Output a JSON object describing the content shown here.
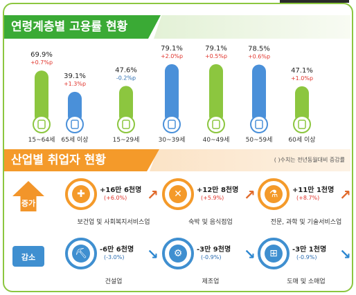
{
  "section1": {
    "title": "연령계층별 고용률 현황"
  },
  "chart_data": {
    "type": "bar",
    "categories": [
      "15~64세",
      "65세 이상",
      "15~29세",
      "30~39세",
      "40~49세",
      "50~59세",
      "60세 이상"
    ],
    "values": [
      69.9,
      39.1,
      47.6,
      79.1,
      79.1,
      78.5,
      47.1
    ],
    "value_labels": [
      "69.9%",
      "39.1%",
      "47.6%",
      "79.1%",
      "79.1%",
      "78.5%",
      "47.1%"
    ],
    "change_labels": [
      "+0.7%p",
      "+1.3%p",
      "-0.2%p",
      "+2.0%p",
      "+0.5%p",
      "+0.6%p",
      "+1.0%p"
    ],
    "changes": [
      0.7,
      1.3,
      -0.2,
      2.0,
      0.5,
      0.6,
      1.0
    ],
    "bar_colors": [
      "#8cc63f",
      "#4a90d9",
      "#8cc63f",
      "#4a90d9",
      "#8cc63f",
      "#4a90d9",
      "#8cc63f"
    ],
    "icon_names": [
      "document-icon",
      "person-icon",
      "document-icon",
      "person-icon",
      "document-icon",
      "person-icon",
      "document-icon"
    ],
    "ylim": [
      0,
      100
    ]
  },
  "section2": {
    "title": "산업별 취업자 현황",
    "note": "( )수치는 전년동월대비 증감률",
    "increase_label": "증가",
    "decrease_label": "감소",
    "increase": [
      {
        "value": "+16만 6천명",
        "pct": "(+6.0%)",
        "name": "보건업 및 사회복지서비스업",
        "icon": "first-aid-kit-icon"
      },
      {
        "value": "+12만 8천명",
        "pct": "(+5.9%)",
        "name": "숙박 및 음식점업",
        "icon": "dining-icon"
      },
      {
        "value": "+11만 1천명",
        "pct": "(+8.7%)",
        "name": "전문, 과학 및 기술서비스업",
        "icon": "flask-icon"
      }
    ],
    "decrease": [
      {
        "value": "-6만 6천명",
        "pct": "(-3.0%)",
        "name": "건설업",
        "icon": "excavator-icon"
      },
      {
        "value": "-3만 9천명",
        "pct": "(-0.9%)",
        "name": "제조업",
        "icon": "gears-icon"
      },
      {
        "value": "-3만 1천명",
        "pct": "(-0.9%)",
        "name": "도매 및 소매업",
        "icon": "basket-icon"
      }
    ]
  },
  "colors": {
    "green": "#3aaa35",
    "orange": "#f49a2a",
    "blue": "#3f8fd0",
    "red": "#e0332b"
  }
}
